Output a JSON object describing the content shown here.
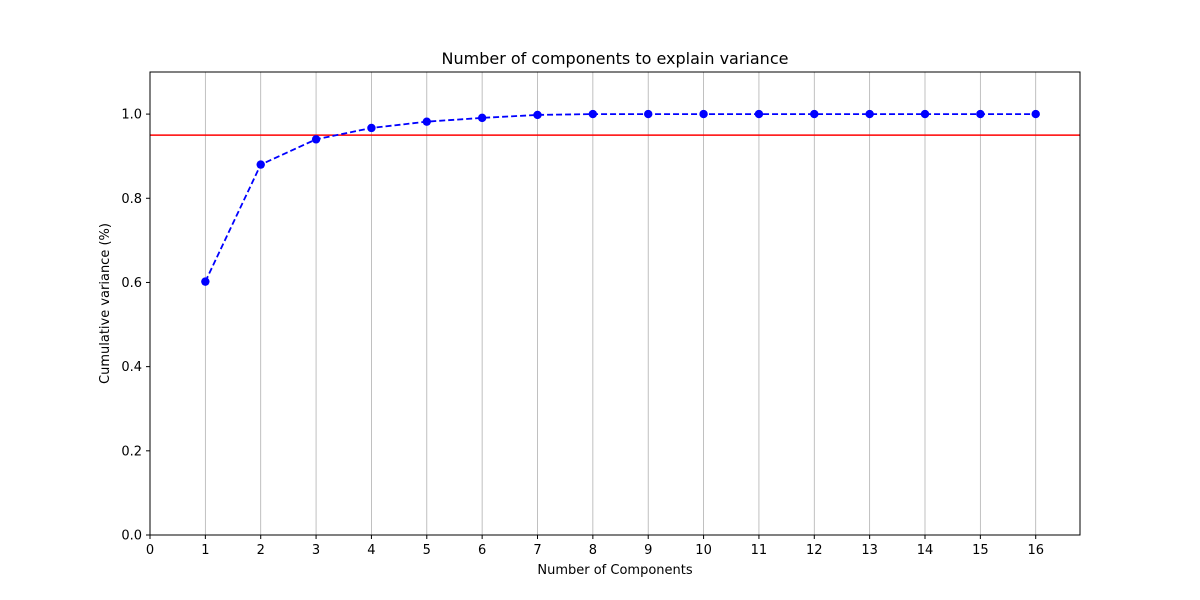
{
  "chart_data": {
    "type": "line",
    "title": "Number of components to explain variance",
    "xlabel": "Number of Components",
    "ylabel": "Cumulative variance (%)",
    "xlim": [
      0,
      16.8
    ],
    "ylim": [
      0,
      1.1
    ],
    "x_ticks": [
      0,
      1,
      2,
      3,
      4,
      5,
      6,
      7,
      8,
      9,
      10,
      11,
      12,
      13,
      14,
      15,
      16
    ],
    "y_ticks": [
      "0.0",
      "0.2",
      "0.4",
      "0.6",
      "0.8",
      "1.0"
    ],
    "grid": "x-axis vertical lines",
    "x": [
      1,
      2,
      3,
      4,
      5,
      6,
      7,
      8,
      9,
      10,
      11,
      12,
      13,
      14,
      15,
      16
    ],
    "series": [
      {
        "values": [
          0.602,
          0.88,
          0.94,
          0.967,
          0.982,
          0.991,
          0.998,
          1.0,
          1.0,
          1.0,
          1.0,
          1.0,
          1.0,
          1.0,
          1.0,
          1.0
        ],
        "color": "#0000ff",
        "line_style": "dashed",
        "marker": "circle"
      }
    ],
    "reference_lines": [
      {
        "orientation": "horizontal",
        "y": 0.95,
        "color": "#ff0000"
      }
    ]
  }
}
